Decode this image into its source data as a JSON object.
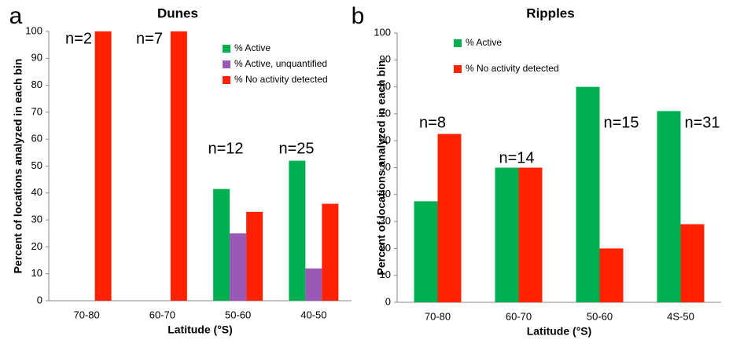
{
  "chart_data": [
    {
      "type": "bar",
      "panel": "a",
      "title": "Dunes",
      "categories": [
        "70-80",
        "60-70",
        "50-60",
        "40-50"
      ],
      "series": [
        {
          "name": "% Active",
          "color": "#00b050",
          "values": [
            null,
            null,
            41.5,
            52
          ]
        },
        {
          "name": "% Active, unquantified",
          "color": "#9b59b6",
          "values": [
            null,
            null,
            25,
            12
          ]
        },
        {
          "name": "% No activity detected",
          "color": "#ff2200",
          "values": [
            100,
            100,
            33,
            36
          ]
        }
      ],
      "annotations": [
        "n=2",
        "n=7",
        "n=12",
        "n=25"
      ],
      "y_label": "Percent of locations analyzed in each bin",
      "x_label": "Latitude (°S)",
      "ylim": [
        0,
        100
      ],
      "yticks": [
        0,
        10,
        20,
        30,
        40,
        50,
        60,
        70,
        80,
        90,
        100
      ]
    },
    {
      "type": "bar",
      "panel": "b",
      "title": "Ripples",
      "categories": [
        "70-80",
        "60-70",
        "50-60",
        "4S-50"
      ],
      "series": [
        {
          "name": "% Active",
          "color": "#00b050",
          "values": [
            37.5,
            50,
            80,
            71
          ]
        },
        {
          "name": "% No activity detected",
          "color": "#ff2200",
          "values": [
            62.5,
            50,
            20,
            29
          ]
        }
      ],
      "annotations": [
        "n=8",
        "n=14",
        "n=15",
        "n=31"
      ],
      "y_label": "Percent of locations analyzed in each bin",
      "x_label": "Latitude (°S)",
      "ylim": [
        0,
        100
      ],
      "yticks": [
        0,
        10,
        20,
        30,
        40,
        50,
        60,
        70,
        80,
        90,
        100
      ]
    }
  ]
}
